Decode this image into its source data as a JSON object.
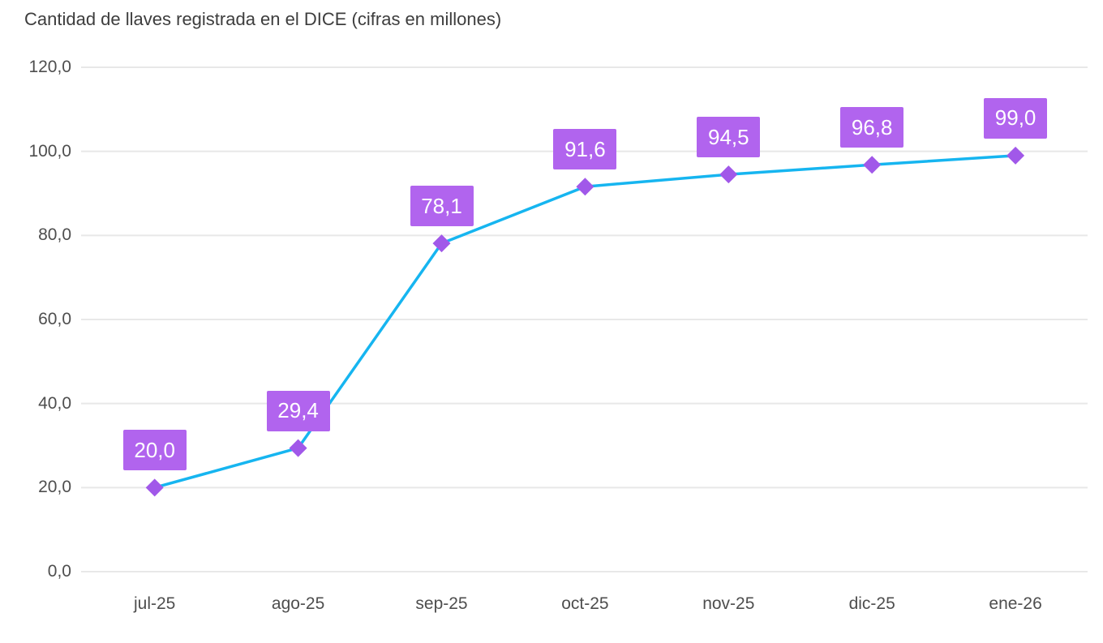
{
  "page": {
    "background": "#ffffff"
  },
  "chart_data": {
    "type": "line",
    "title": "Cantidad de llaves registrada en el DICE (cifras en millones)",
    "categories": [
      "jul-25",
      "ago-25",
      "sep-25",
      "oct-25",
      "nov-25",
      "dic-25",
      "ene-26"
    ],
    "series": [
      {
        "name": "Cantidad de llaves registrada en el DICE",
        "values": [
          20.0,
          29.4,
          78.1,
          91.6,
          94.5,
          96.8,
          99.0
        ]
      }
    ],
    "data_labels": [
      "20,0",
      "29,4",
      "78,1",
      "91,6",
      "94,5",
      "96,8",
      "99,0"
    ],
    "xlabel": "",
    "ylabel": "",
    "ylim": [
      0,
      120
    ],
    "y_tick_values": [
      0,
      20,
      40,
      60,
      80,
      100,
      120
    ],
    "y_tick_labels": [
      "0,0",
      "20,0",
      "40,0",
      "60,0",
      "80,0",
      "100,0",
      "120,0"
    ],
    "grid": true,
    "legend": "none",
    "marker_shape": "diamond",
    "colors": {
      "line": "#16b5f0",
      "marker": "#a158e9",
      "label_bg": "#b164ee",
      "label_text": "#ffffff",
      "grid": "#e8e8e8",
      "axis_text": "#4e4e4e",
      "title_text": "#3d3d3d"
    }
  }
}
